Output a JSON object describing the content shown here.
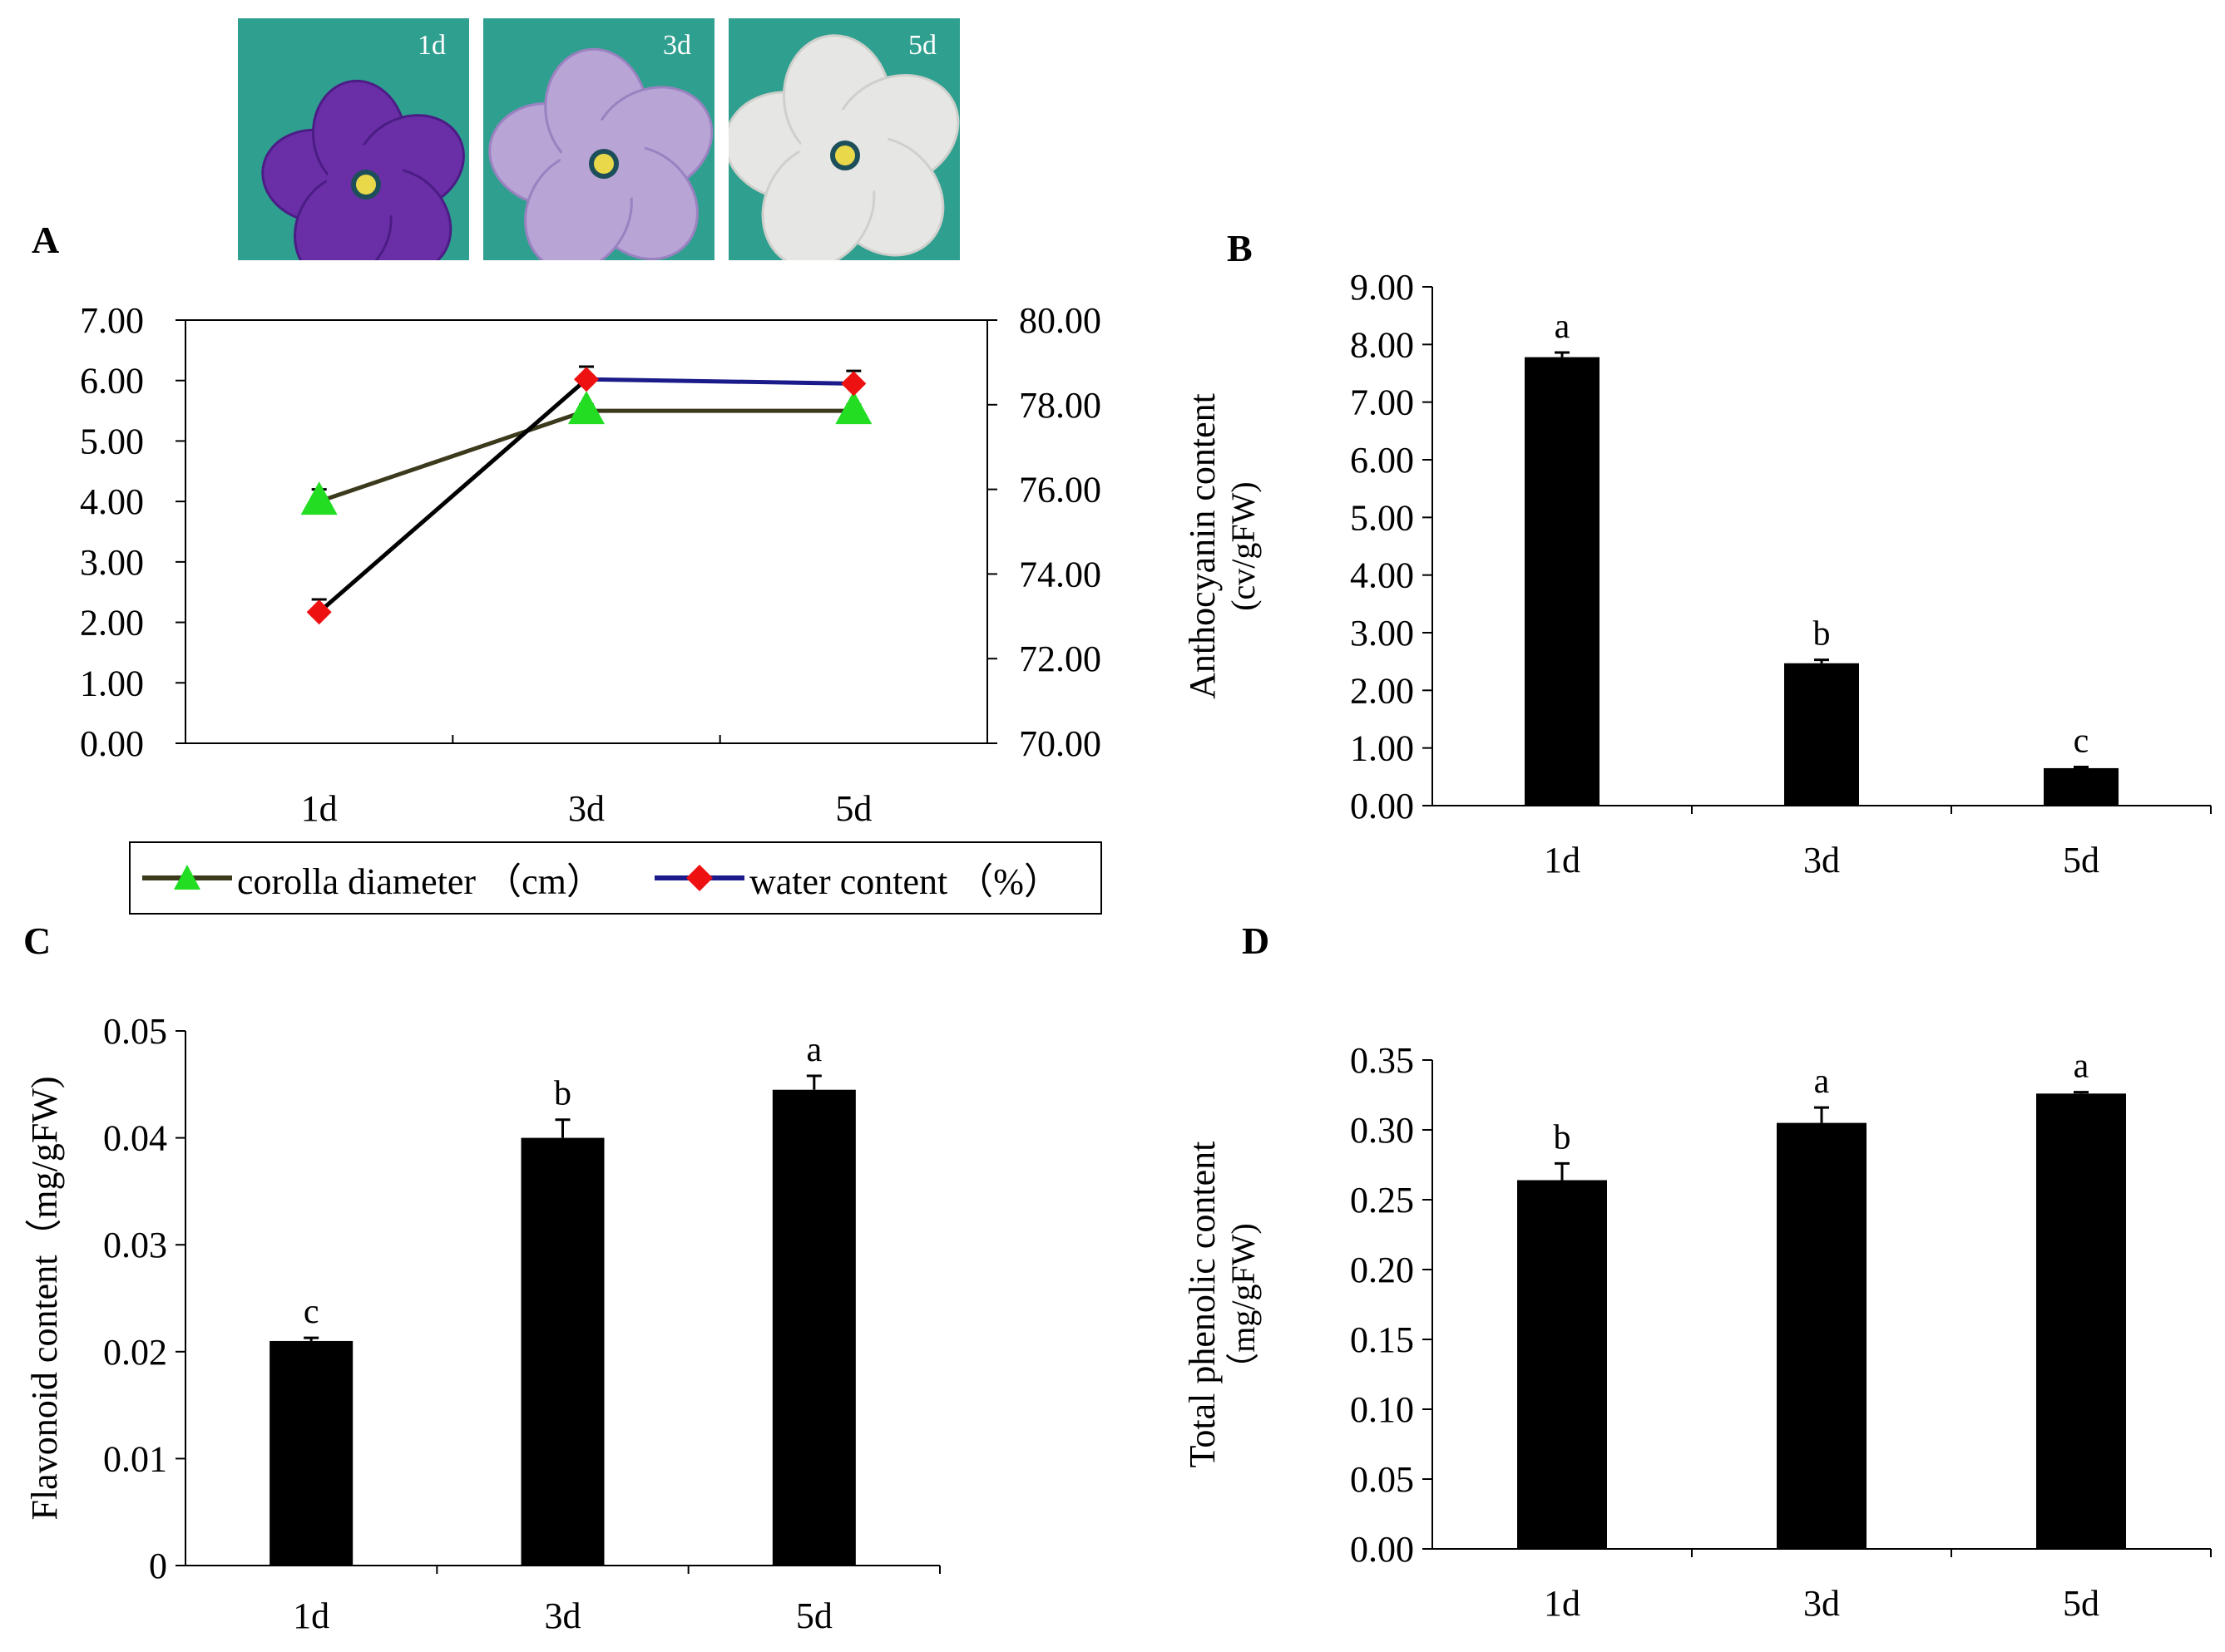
{
  "panels": {
    "A": {
      "label": "A"
    },
    "B": {
      "label": "B"
    },
    "C": {
      "label": "C"
    },
    "D": {
      "label": "D"
    }
  },
  "photos": [
    {
      "label": "1d",
      "petal_color": "#6a2fa6",
      "dark_color": "#4c1c86"
    },
    {
      "label": "3d",
      "petal_color": "#b9a4d6",
      "dark_color": "#9a82c0"
    },
    {
      "label": "5d",
      "petal_color": "#e6e6e4",
      "dark_color": "#cfcfcc"
    }
  ],
  "legend": {
    "corolla_label": "corolla diameter （cm）",
    "water_label": "water content （%）"
  },
  "colors": {
    "corolla_line": "#3b3a1c",
    "corolla_marker": "#22dd22",
    "water_line": "#1a1a8a",
    "water_line_dark": "#000000",
    "water_marker": "#ee1111",
    "bar": "#000000",
    "photo_bg": "#2f9f8f"
  },
  "chart_data": [
    {
      "id": "A",
      "type": "line",
      "categories": [
        "1d",
        "3d",
        "5d"
      ],
      "ylim_left": [
        0,
        7
      ],
      "ylim_right": [
        70,
        80
      ],
      "left_ticks": [
        "0.00",
        "1.00",
        "2.00",
        "3.00",
        "4.00",
        "5.00",
        "6.00",
        "7.00"
      ],
      "right_ticks": [
        "70.00",
        "72.00",
        "74.00",
        "76.00",
        "78.00",
        "80.00"
      ],
      "series": [
        {
          "name": "corolla diameter （cm）",
          "axis": "left",
          "values": [
            4.0,
            5.5,
            5.5
          ],
          "errors": [
            0.2,
            0.1,
            0.1
          ]
        },
        {
          "name": "water content （%）",
          "axis": "right",
          "values": [
            73.1,
            78.6,
            78.5
          ],
          "errors": [
            0.3,
            0.3,
            0.3
          ]
        }
      ]
    },
    {
      "id": "B",
      "type": "bar",
      "categories": [
        "1d",
        "3d",
        "5d"
      ],
      "values": [
        7.78,
        2.47,
        0.65
      ],
      "errors": [
        0.08,
        0.06,
        0.02
      ],
      "sig_letters": [
        "a",
        "b",
        "c"
      ],
      "ylabel": "Anthocyanin content",
      "ylabel2": "(cv/gFW)",
      "ylim": [
        0,
        9
      ],
      "ticks": [
        "0.00",
        "1.00",
        "2.00",
        "3.00",
        "4.00",
        "5.00",
        "6.00",
        "7.00",
        "8.00",
        "9.00"
      ]
    },
    {
      "id": "C",
      "type": "bar",
      "categories": [
        "1d",
        "3d",
        "5d"
      ],
      "values": [
        0.021,
        0.04,
        0.0445
      ],
      "errors": [
        0.0003,
        0.0017,
        0.0013
      ],
      "sig_letters": [
        "c",
        "b",
        "a"
      ],
      "ylabel": "Flavonoid content（mg/gFW)",
      "ylim": [
        0,
        0.05
      ],
      "ticks": [
        "0",
        "0.01",
        "0.02",
        "0.03",
        "0.04",
        "0.05"
      ]
    },
    {
      "id": "D",
      "type": "bar",
      "categories": [
        "1d",
        "3d",
        "5d"
      ],
      "values": [
        0.264,
        0.305,
        0.326
      ],
      "errors": [
        0.012,
        0.011,
        0.001
      ],
      "sig_letters": [
        "b",
        "a",
        "a"
      ],
      "ylabel": "Total phenolic content",
      "ylabel2": "（mg/gFW)",
      "ylim": [
        0,
        0.35
      ],
      "ticks": [
        "0.00",
        "0.05",
        "0.10",
        "0.15",
        "0.20",
        "0.25",
        "0.30",
        "0.35"
      ]
    }
  ]
}
